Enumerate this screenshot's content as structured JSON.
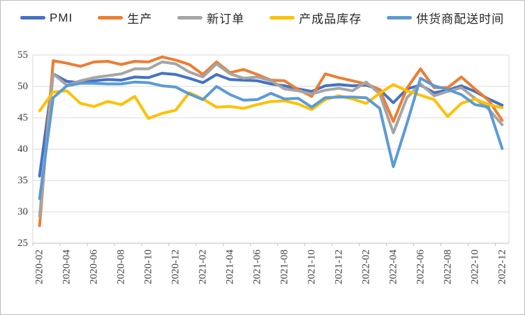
{
  "chart_data": {
    "type": "line",
    "title": "",
    "xlabel": "",
    "ylabel": "",
    "ylim": [
      25,
      55
    ],
    "y_ticks": [
      25,
      30,
      35,
      40,
      45,
      50,
      55
    ],
    "x_label_interval": 2,
    "grid": true,
    "legend_position": "top",
    "x": [
      "2020-02",
      "2020-03",
      "2020-04",
      "2020-05",
      "2020-06",
      "2020-07",
      "2020-08",
      "2020-09",
      "2020-10",
      "2020-11",
      "2020-12",
      "2021-01",
      "2021-02",
      "2021-03",
      "2021-04",
      "2021-05",
      "2021-06",
      "2021-07",
      "2021-08",
      "2021-09",
      "2021-10",
      "2021-11",
      "2021-12",
      "2022-01",
      "2022-02",
      "2022-03",
      "2022-04",
      "2022-05",
      "2022-06",
      "2022-07",
      "2022-08",
      "2022-09",
      "2022-10",
      "2022-11",
      "2022-12"
    ],
    "series": [
      {
        "name": "PMI",
        "color": "#4472C4",
        "values": [
          35.7,
          52.0,
          50.8,
          50.6,
          50.9,
          51.1,
          51.0,
          51.5,
          51.4,
          52.1,
          51.9,
          51.3,
          50.6,
          51.9,
          51.1,
          51.0,
          50.9,
          50.4,
          50.1,
          49.6,
          49.2,
          50.1,
          50.3,
          50.1,
          50.2,
          49.5,
          47.4,
          49.6,
          50.2,
          49.0,
          49.4,
          50.1,
          49.2,
          48.0,
          47.0
        ]
      },
      {
        "name": "生产",
        "color": "#ED7D31",
        "values": [
          27.8,
          54.1,
          53.7,
          53.2,
          53.9,
          54.0,
          53.5,
          54.0,
          53.9,
          54.7,
          54.2,
          53.5,
          51.9,
          53.9,
          52.2,
          52.7,
          51.9,
          51.0,
          50.9,
          49.5,
          48.4,
          52.0,
          51.4,
          50.9,
          50.4,
          49.5,
          44.4,
          49.7,
          52.8,
          49.8,
          49.8,
          51.5,
          49.6,
          47.8,
          44.6
        ]
      },
      {
        "name": "新订单",
        "color": "#A5A5A5",
        "values": [
          29.3,
          52.0,
          50.2,
          50.9,
          51.4,
          51.7,
          52.0,
          52.8,
          52.8,
          53.9,
          53.6,
          52.3,
          51.5,
          53.6,
          52.0,
          51.3,
          51.5,
          50.9,
          49.6,
          49.3,
          48.8,
          49.4,
          49.7,
          49.3,
          50.7,
          48.8,
          42.6,
          48.2,
          50.4,
          48.5,
          49.2,
          49.8,
          48.1,
          46.4,
          43.9
        ]
      },
      {
        "name": "产成品库存",
        "color": "#FFC000",
        "values": [
          46.1,
          49.1,
          49.3,
          47.3,
          46.8,
          47.6,
          47.1,
          48.4,
          44.9,
          45.7,
          46.2,
          49.0,
          48.0,
          46.7,
          46.8,
          46.5,
          47.1,
          47.6,
          47.7,
          47.2,
          46.3,
          47.9,
          48.5,
          48.0,
          47.3,
          48.9,
          50.3,
          49.3,
          48.6,
          47.9,
          45.2,
          47.3,
          48.0,
          47.1,
          46.6
        ]
      },
      {
        "name": "供货商配送时间",
        "color": "#5B9BD5",
        "values": [
          32.1,
          48.2,
          50.1,
          50.5,
          50.5,
          50.4,
          50.4,
          50.7,
          50.6,
          50.1,
          49.9,
          48.8,
          47.9,
          50.0,
          48.7,
          47.8,
          47.9,
          48.9,
          48.0,
          48.1,
          46.7,
          48.2,
          48.3,
          48.3,
          48.2,
          46.5,
          37.2,
          44.1,
          51.3,
          50.1,
          49.5,
          48.7,
          47.1,
          46.7,
          40.1
        ]
      }
    ]
  },
  "colors": {
    "gridline": "#D9D9D9",
    "plot_border": "#D9D9D9",
    "axis_line": "#BFBFBF",
    "tick_text": "#404040",
    "background": "#FFFFFF"
  }
}
